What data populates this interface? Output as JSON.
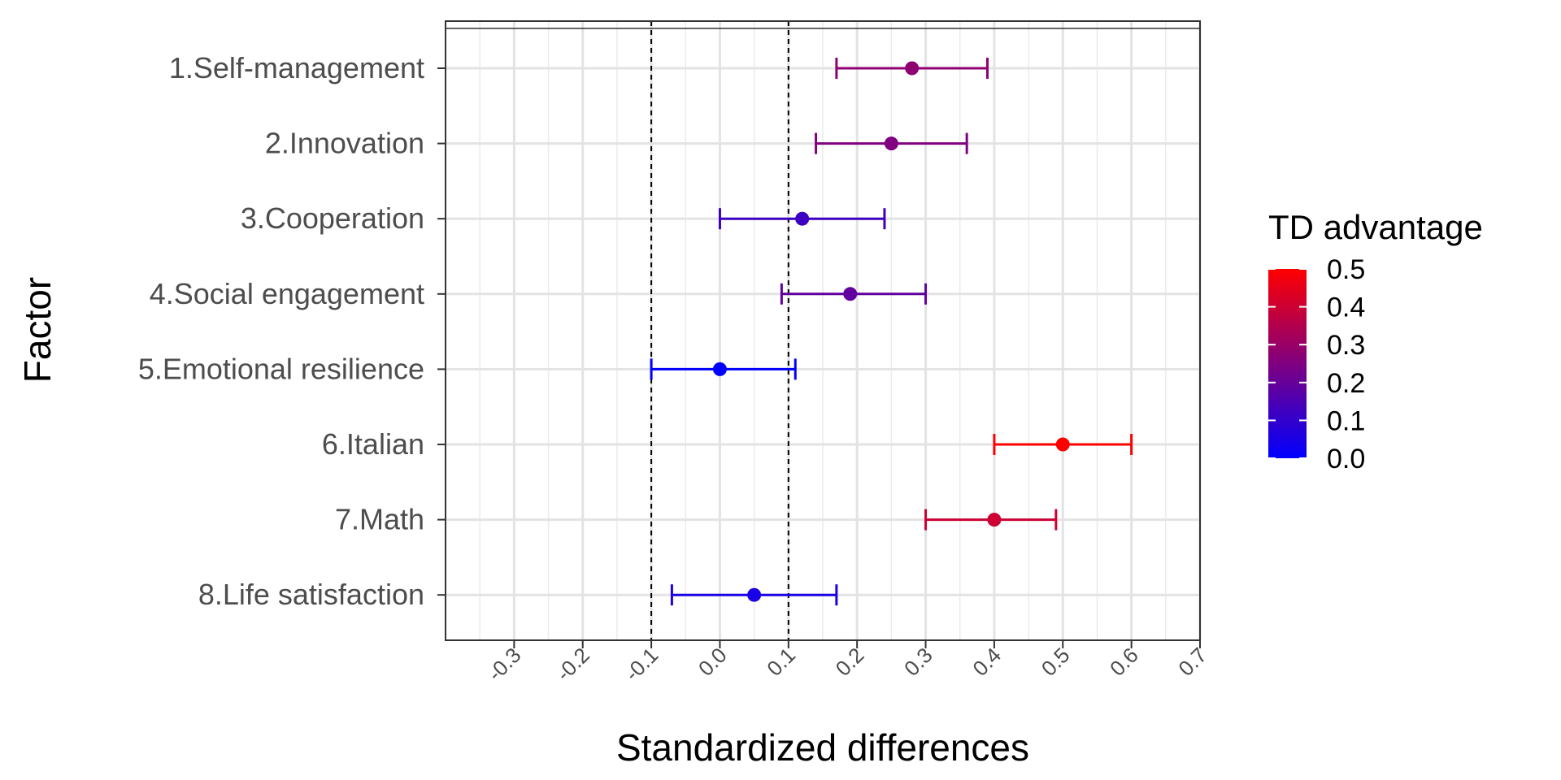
{
  "chart_data": {
    "type": "errorbar",
    "xlabel": "Standardized differences",
    "ylabel": "Factor",
    "xlim": [
      -0.4,
      0.7
    ],
    "x_ticks": [
      "-0.3",
      "-0.2",
      "-0.1",
      "0.0",
      "0.1",
      "0.2",
      "0.3",
      "0.4",
      "0.5",
      "0.6",
      "0.7"
    ],
    "x_tick_values": [
      -0.3,
      -0.2,
      -0.1,
      0.0,
      0.1,
      0.2,
      0.3,
      0.4,
      0.5,
      0.6,
      0.7
    ],
    "reference_lines": [
      -0.1,
      0.1
    ],
    "grid": true,
    "legend": {
      "title": "TD advantage",
      "type": "colorbar",
      "placement": "right",
      "labels": [
        "0.5",
        "0.4",
        "0.3",
        "0.2",
        "0.1",
        "0.0"
      ],
      "range": [
        0.0,
        0.5
      ],
      "colors": [
        "#0000ff",
        "#ff0000"
      ]
    },
    "categories": [
      "1.Self-management",
      "2.Innovation",
      "3.Cooperation",
      "4.Social engagement",
      "5.Emotional resilience",
      "6.Italian",
      "7.Math",
      "8.Life satisfaction"
    ],
    "values": [
      0.28,
      0.25,
      0.12,
      0.19,
      0.0,
      0.5,
      0.4,
      0.05
    ],
    "lower": [
      0.17,
      0.14,
      0.0,
      0.09,
      -0.1,
      0.4,
      0.3,
      -0.07
    ],
    "upper": [
      0.39,
      0.36,
      0.24,
      0.3,
      0.11,
      0.6,
      0.49,
      0.17
    ]
  }
}
